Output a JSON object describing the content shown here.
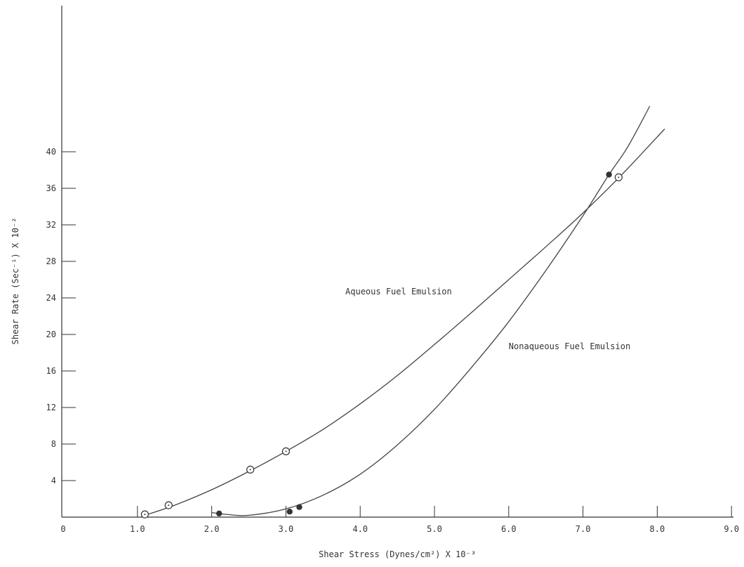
{
  "chart_data": {
    "type": "line",
    "xlabel": "Shear Stress (Dynes/cm²) X 10⁻³",
    "ylabel": "Shear Rate (Sec⁻¹) X 10⁻²",
    "xlim": [
      0,
      9.0
    ],
    "ylim": [
      0,
      40
    ],
    "x_ticks": [
      "0",
      "1.0",
      "2.0",
      "3.0",
      "4.0",
      "5.0",
      "6.0",
      "7.0",
      "8.0",
      "9.0"
    ],
    "y_ticks": [
      "4",
      "8",
      "12",
      "16",
      "20",
      "24",
      "28",
      "32",
      "36",
      "40"
    ],
    "series": [
      {
        "name": "Aqueous Fuel Emulsion",
        "marker": "open-circle",
        "points": [
          [
            1.1,
            0.3
          ],
          [
            1.42,
            1.3
          ],
          [
            2.52,
            5.2
          ],
          [
            3.0,
            7.2
          ],
          [
            7.48,
            37.2
          ]
        ],
        "curve": [
          [
            1.1,
            0.2
          ],
          [
            1.5,
            1.3
          ],
          [
            2.0,
            3.0
          ],
          [
            2.5,
            5.0
          ],
          [
            3.0,
            7.2
          ],
          [
            3.5,
            9.6
          ],
          [
            4.0,
            12.4
          ],
          [
            4.5,
            15.5
          ],
          [
            5.0,
            18.9
          ],
          [
            5.5,
            22.4
          ],
          [
            6.0,
            26.0
          ],
          [
            6.5,
            29.6
          ],
          [
            7.0,
            33.3
          ],
          [
            7.5,
            37.3
          ],
          [
            8.1,
            42.5
          ]
        ]
      },
      {
        "name": "Nonaqueous Fuel Emulsion",
        "marker": "filled-circle",
        "points": [
          [
            2.1,
            0.4
          ],
          [
            3.05,
            0.6
          ],
          [
            3.18,
            1.1
          ],
          [
            7.35,
            37.5
          ]
        ],
        "curve": [
          [
            2.0,
            0.5
          ],
          [
            2.2,
            0.3
          ],
          [
            2.5,
            0.2
          ],
          [
            3.0,
            0.9
          ],
          [
            3.5,
            2.4
          ],
          [
            4.0,
            4.7
          ],
          [
            4.5,
            7.9
          ],
          [
            5.0,
            11.8
          ],
          [
            5.5,
            16.4
          ],
          [
            6.0,
            21.4
          ],
          [
            6.5,
            27.0
          ],
          [
            7.0,
            33.0
          ],
          [
            7.35,
            37.5
          ],
          [
            7.6,
            40.5
          ],
          [
            7.9,
            45.0
          ]
        ]
      }
    ],
    "annotations": [
      {
        "text": "Aqueous Fuel Emulsion",
        "x": 3.8,
        "y": 24.4
      },
      {
        "text": "Nonaqueous Fuel Emulsion",
        "x": 6.0,
        "y": 18.4
      }
    ]
  }
}
